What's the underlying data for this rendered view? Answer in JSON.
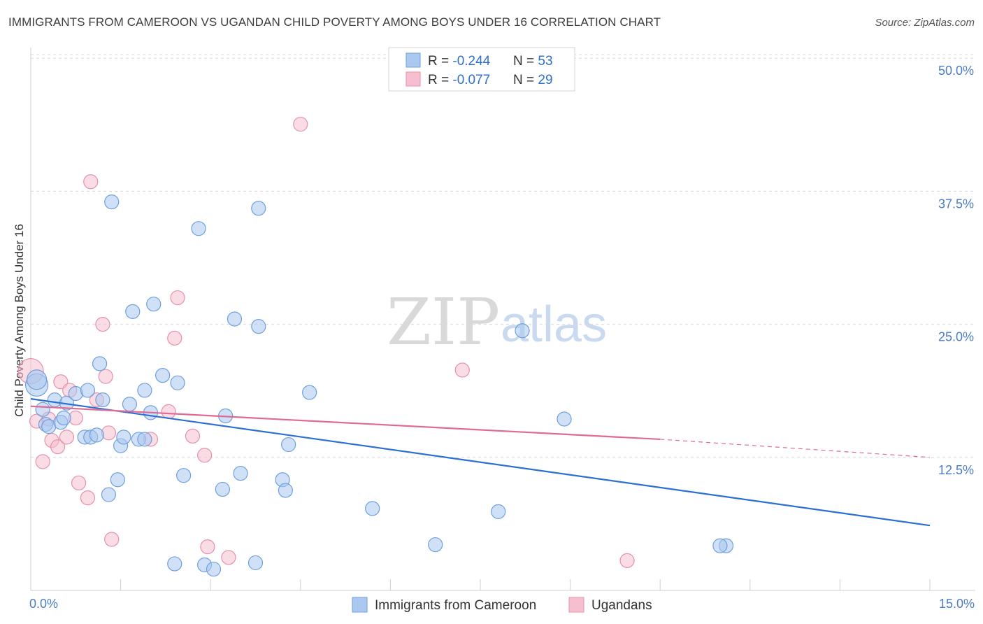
{
  "header": {
    "title": "IMMIGRANTS FROM CAMEROON VS UGANDAN CHILD POVERTY AMONG BOYS UNDER 16 CORRELATION CHART",
    "source": "Source: ZipAtlas.com"
  },
  "watermark": {
    "zip": "ZIP",
    "atlas": "atlas"
  },
  "colors": {
    "blue_fill": "#aac8f0",
    "blue_stroke": "#6f9fdc",
    "blue_line": "#2b6fd2",
    "pink_fill": "#f6bfd0",
    "pink_stroke": "#e690ae",
    "pink_line": "#e06a95",
    "grid": "#d8d8d8",
    "axis_label": "#4a7cc7"
  },
  "legend": {
    "rows": [
      {
        "r_label": "R = ",
        "r_value": "-0.244",
        "n_label": "N = ",
        "n_value": "53"
      },
      {
        "r_label": "R = ",
        "r_value": "-0.077",
        "n_label": "N = ",
        "n_value": "29"
      }
    ]
  },
  "chart_data": {
    "type": "scatter",
    "title": "IMMIGRANTS FROM CAMEROON VS UGANDAN CHILD POVERTY AMONG BOYS UNDER 16 CORRELATION CHART",
    "xlabel": "",
    "ylabel": "Child Poverty Among Boys Under 16",
    "xlim": [
      0,
      15
    ],
    "ylim": [
      0,
      51
    ],
    "x_tick_labels": [
      "0.0%",
      "15.0%"
    ],
    "y_ticks": [
      12.5,
      25.0,
      37.5,
      50.0
    ],
    "y_tick_labels": [
      "12.5%",
      "25.0%",
      "37.5%",
      "50.0%"
    ],
    "grid": true,
    "legend_position": "top-center",
    "series": [
      {
        "name": "Immigrants from Cameroon",
        "color": "#aac8f0",
        "trend": {
          "x": [
            0.0,
            15.0
          ],
          "y": [
            18.0,
            6.1
          ]
        },
        "points": [
          [
            0.1,
            19.3,
            16
          ],
          [
            0.1,
            19.8,
            14
          ],
          [
            0.2,
            17.0,
            10
          ],
          [
            0.25,
            15.6,
            10
          ],
          [
            0.3,
            15.4,
            10
          ],
          [
            0.4,
            17.9,
            10
          ],
          [
            0.5,
            15.8,
            10
          ],
          [
            0.55,
            16.2,
            10
          ],
          [
            0.6,
            17.6,
            10
          ],
          [
            0.75,
            18.5,
            10
          ],
          [
            0.9,
            14.4,
            10
          ],
          [
            0.95,
            18.8,
            10
          ],
          [
            1.0,
            14.4,
            10
          ],
          [
            1.1,
            14.6,
            10
          ],
          [
            1.15,
            21.3,
            10
          ],
          [
            1.2,
            17.9,
            10
          ],
          [
            1.3,
            9.0,
            10
          ],
          [
            1.35,
            36.5,
            10
          ],
          [
            1.45,
            10.4,
            10
          ],
          [
            1.5,
            13.6,
            10
          ],
          [
            1.55,
            14.4,
            10
          ],
          [
            1.65,
            17.5,
            10
          ],
          [
            1.7,
            26.2,
            10
          ],
          [
            1.8,
            14.2,
            10
          ],
          [
            1.9,
            14.2,
            10
          ],
          [
            1.9,
            18.8,
            10
          ],
          [
            2.0,
            16.7,
            10
          ],
          [
            2.05,
            26.9,
            10
          ],
          [
            2.2,
            20.2,
            10
          ],
          [
            2.4,
            2.5,
            10
          ],
          [
            2.45,
            19.5,
            10
          ],
          [
            2.55,
            10.8,
            10
          ],
          [
            2.8,
            34.0,
            10
          ],
          [
            2.9,
            2.4,
            10
          ],
          [
            3.05,
            2.0,
            10
          ],
          [
            3.2,
            9.5,
            10
          ],
          [
            3.25,
            16.4,
            10
          ],
          [
            3.4,
            25.5,
            10
          ],
          [
            3.5,
            11.0,
            10
          ],
          [
            3.75,
            2.6,
            10
          ],
          [
            3.8,
            24.8,
            10
          ],
          [
            3.8,
            35.9,
            10
          ],
          [
            4.2,
            10.4,
            10
          ],
          [
            4.25,
            9.4,
            10
          ],
          [
            4.3,
            13.7,
            10
          ],
          [
            4.65,
            18.6,
            10
          ],
          [
            5.7,
            7.7,
            10
          ],
          [
            6.75,
            4.3,
            10
          ],
          [
            7.8,
            7.4,
            10
          ],
          [
            8.2,
            24.4,
            10
          ],
          [
            8.9,
            16.1,
            10
          ],
          [
            11.6,
            4.2,
            10
          ],
          [
            11.5,
            4.2,
            10
          ]
        ]
      },
      {
        "name": "Ugandans",
        "color": "#f6bfd0",
        "trend": {
          "x": [
            0.0,
            10.5
          ],
          "y": [
            17.3,
            14.2
          ]
        },
        "trend_dashed": {
          "x": [
            10.5,
            15.0
          ],
          "y": [
            14.2,
            12.5
          ]
        },
        "points": [
          [
            0.0,
            20.6,
            18
          ],
          [
            0.1,
            15.9,
            10
          ],
          [
            0.2,
            12.1,
            10
          ],
          [
            0.3,
            16.1,
            10
          ],
          [
            0.35,
            14.1,
            10
          ],
          [
            0.45,
            13.5,
            10
          ],
          [
            0.5,
            19.6,
            10
          ],
          [
            0.6,
            14.4,
            10
          ],
          [
            0.65,
            18.8,
            10
          ],
          [
            0.75,
            16.2,
            10
          ],
          [
            0.8,
            10.1,
            10
          ],
          [
            0.95,
            8.7,
            10
          ],
          [
            1.0,
            38.4,
            10
          ],
          [
            1.1,
            17.9,
            10
          ],
          [
            1.2,
            25.0,
            10
          ],
          [
            1.25,
            20.1,
            10
          ],
          [
            1.3,
            14.8,
            10
          ],
          [
            1.35,
            4.8,
            10
          ],
          [
            2.0,
            14.2,
            10
          ],
          [
            2.3,
            16.8,
            10
          ],
          [
            2.4,
            23.7,
            10
          ],
          [
            2.45,
            27.5,
            10
          ],
          [
            2.7,
            14.5,
            10
          ],
          [
            2.9,
            12.7,
            10
          ],
          [
            2.95,
            4.1,
            10
          ],
          [
            3.3,
            3.1,
            10
          ],
          [
            4.5,
            43.8,
            10
          ],
          [
            7.2,
            20.7,
            10
          ],
          [
            9.95,
            2.8,
            10
          ]
        ]
      }
    ]
  },
  "bottom_legend": {
    "items": [
      {
        "label": "Immigrants from Cameroon"
      },
      {
        "label": "Ugandans"
      }
    ]
  }
}
